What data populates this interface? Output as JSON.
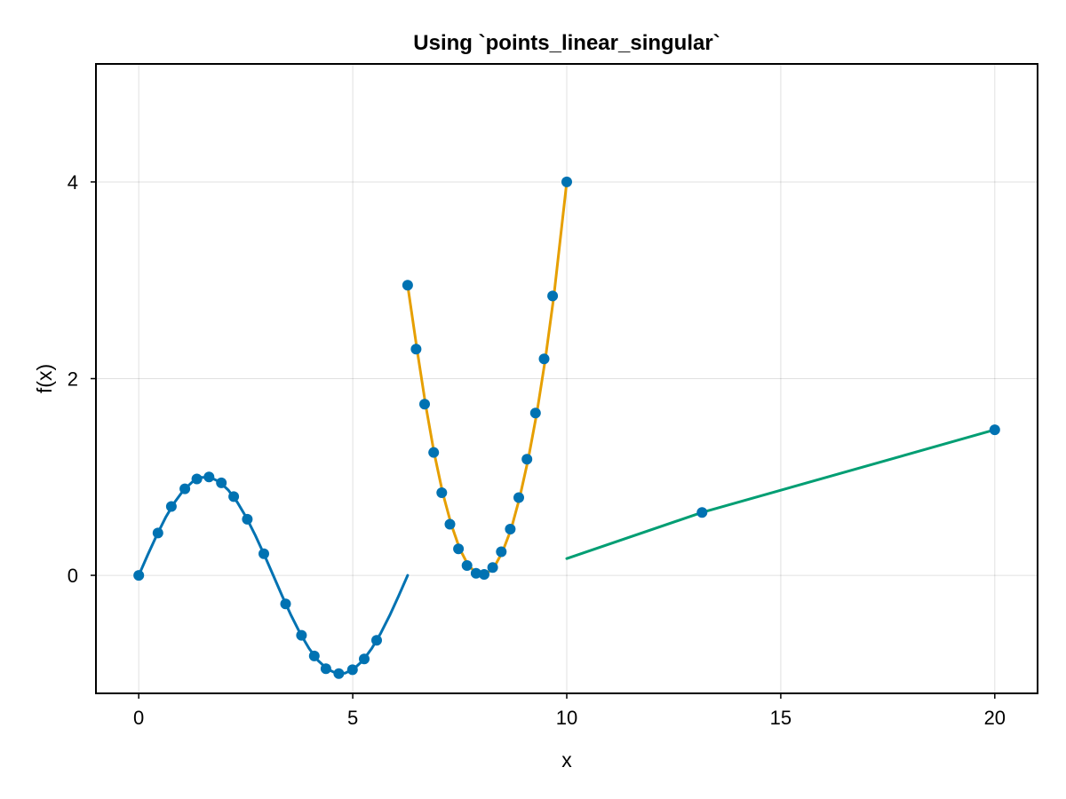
{
  "chart_data": {
    "type": "line",
    "title": "Using `points_linear_singular`",
    "xlabel": "x",
    "ylabel": "f(x)",
    "xlim": [
      -1,
      21
    ],
    "ylim": [
      -1.2,
      5.2
    ],
    "xticks": [
      0,
      5,
      10,
      15,
      20
    ],
    "yticks": [
      0,
      2,
      4
    ],
    "grid": true,
    "series": [
      {
        "color": "#0072b2",
        "line": {
          "x": [
            0,
            0.209,
            0.419,
            0.628,
            0.838,
            1.047,
            1.257,
            1.466,
            1.676,
            1.885,
            2.094,
            2.304,
            2.513,
            2.723,
            2.932,
            3.142,
            3.351,
            3.56,
            3.77,
            3.979,
            4.189,
            4.398,
            4.608,
            4.817,
            5.027,
            5.236,
            5.445,
            5.655,
            5.864,
            6.074,
            6.283
          ],
          "y": [
            0,
            0.208,
            0.407,
            0.588,
            0.743,
            0.866,
            0.951,
            0.995,
            0.995,
            0.951,
            0.866,
            0.743,
            0.588,
            0.407,
            0.208,
            0,
            -0.208,
            -0.407,
            -0.588,
            -0.743,
            -0.866,
            -0.951,
            -0.995,
            -0.995,
            -0.951,
            -0.866,
            -0.743,
            -0.588,
            -0.407,
            -0.208,
            0
          ]
        },
        "points": {
          "x": [
            0,
            0.449,
            0.763,
            1.077,
            1.357,
            1.643,
            1.931,
            2.219,
            2.537,
            2.922,
            3.432,
            3.803,
            4.102,
            4.373,
            4.675,
            4.993,
            5.268,
            5.558
          ],
          "y": [
            0,
            0.43,
            0.7,
            0.88,
            0.98,
            1.0,
            0.94,
            0.8,
            0.57,
            0.22,
            -0.29,
            -0.61,
            -0.82,
            -0.95,
            -1.0,
            -0.96,
            -0.85,
            -0.66
          ]
        }
      },
      {
        "color": "#e69f00",
        "line": {
          "x": [
            6.283,
            6.5,
            6.7,
            6.9,
            7.1,
            7.3,
            7.5,
            7.7,
            7.9,
            8.1,
            8.3,
            8.5,
            8.7,
            8.9,
            9.1,
            9.3,
            9.5,
            9.7,
            10.0
          ],
          "y": [
            2.95,
            2.3,
            1.74,
            1.25,
            0.84,
            0.52,
            0.27,
            0.1,
            0.02,
            0.01,
            0.08,
            0.24,
            0.47,
            0.79,
            1.18,
            1.65,
            2.2,
            2.84,
            4.0
          ]
        },
        "points": {
          "x": [
            6.283,
            6.48,
            6.68,
            6.89,
            7.08,
            7.27,
            7.47,
            7.67,
            7.88,
            8.07,
            8.27,
            8.47,
            8.68,
            8.88,
            9.07,
            9.27,
            9.47,
            9.67,
            10.0
          ],
          "y": [
            2.95,
            2.3,
            1.74,
            1.25,
            0.84,
            0.52,
            0.27,
            0.1,
            0.02,
            0.01,
            0.08,
            0.24,
            0.47,
            0.79,
            1.18,
            1.65,
            2.2,
            2.84,
            4.0
          ]
        }
      },
      {
        "color": "#009e73",
        "line": {
          "x": [
            10.0,
            13.16,
            20.0
          ],
          "y": [
            0.17,
            0.64,
            1.48
          ]
        },
        "points": {
          "x": [
            13.16,
            20.0
          ],
          "y": [
            0.64,
            1.48
          ]
        }
      }
    ],
    "marker_color": "#0072b2"
  }
}
